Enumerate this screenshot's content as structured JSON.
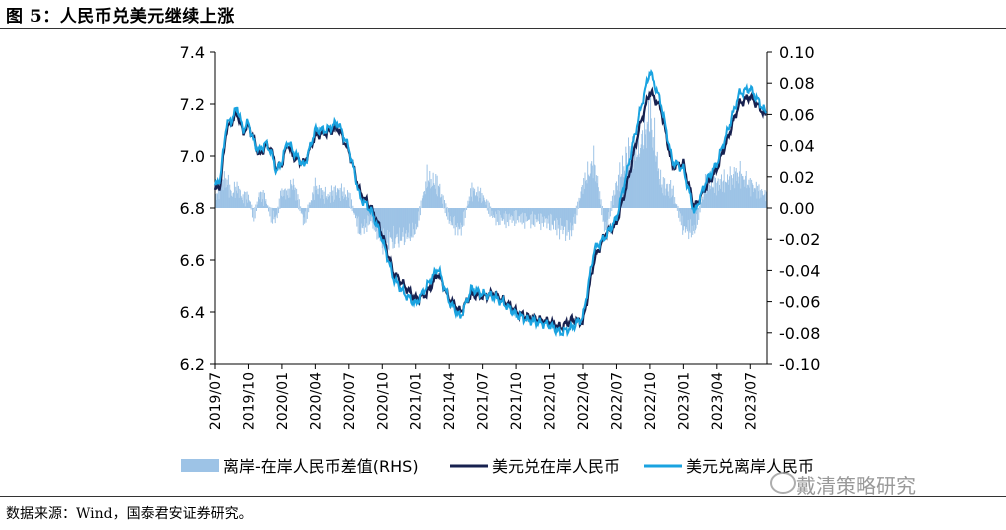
{
  "header": {
    "title": "图 5：人民币兑美元继续上涨"
  },
  "footer": {
    "source": "数据来源：Wind，国泰君安证券研究。"
  },
  "watermark": {
    "text": "戴清策略研究",
    "icon": "wechat-icon"
  },
  "colors": {
    "onshore": "#17214f",
    "offshore": "#1aa3e0",
    "spread": "#9dc3e6"
  },
  "chart_data": {
    "type": "line",
    "title": "人民币兑美元继续上涨",
    "x_start": "2019-07",
    "x_end": "2023-08",
    "x_tick_labels": [
      "2019/07",
      "2019/10",
      "2020/01",
      "2020/04",
      "2020/07",
      "2020/10",
      "2021/01",
      "2021/04",
      "2021/07",
      "2021/10",
      "2022/01",
      "2022/04",
      "2022/07",
      "2022/10",
      "2023/01",
      "2023/04",
      "2023/07"
    ],
    "left_axis": {
      "ylim": [
        6.2,
        7.4
      ],
      "ticks": [
        "7.4",
        "7.2",
        "7.0",
        "6.8",
        "6.6",
        "6.4",
        "6.2"
      ]
    },
    "right_axis": {
      "ylim": [
        -0.1,
        0.1
      ],
      "ticks": [
        "0.10",
        "0.08",
        "0.06",
        "0.04",
        "0.02",
        "0.00",
        "-0.02",
        "-0.04",
        "-0.06",
        "-0.08",
        "-0.10"
      ]
    },
    "legend": [
      "离岸-在岸人民币差值(RHS)",
      "美元兑在岸人民币",
      "美元兑离岸人民币"
    ],
    "series": [
      {
        "name": "美元兑在岸人民币",
        "axis": "left",
        "x": [
          0,
          0.5,
          1,
          1.5,
          2,
          2.5,
          3,
          3.5,
          4,
          4.5,
          5,
          5.5,
          6,
          6.5,
          7,
          8,
          9,
          10,
          11,
          12,
          13,
          14,
          15,
          16,
          17,
          18,
          19,
          20,
          21,
          22,
          23,
          24,
          25,
          26,
          27,
          28,
          29,
          30,
          31,
          32,
          33,
          34,
          35,
          36,
          37,
          38,
          39,
          40,
          41,
          42,
          43,
          44,
          45,
          46,
          47,
          48,
          49.5
        ],
        "values": [
          6.87,
          6.89,
          7.1,
          7.13,
          7.17,
          7.09,
          7.12,
          7.06,
          7.0,
          7.04,
          7.03,
          6.95,
          6.97,
          7.05,
          7.0,
          6.97,
          7.08,
          7.09,
          7.11,
          7.02,
          6.86,
          6.8,
          6.7,
          6.55,
          6.5,
          6.45,
          6.47,
          6.55,
          6.45,
          6.4,
          6.47,
          6.46,
          6.47,
          6.44,
          6.4,
          6.38,
          6.37,
          6.36,
          6.34,
          6.37,
          6.36,
          6.6,
          6.7,
          6.74,
          6.9,
          7.1,
          7.25,
          7.18,
          6.96,
          6.97,
          6.8,
          6.88,
          6.95,
          7.07,
          7.2,
          7.23,
          7.15
        ]
      },
      {
        "name": "美元兑离岸人民币",
        "axis": "left",
        "x": [
          0,
          0.5,
          1,
          1.5,
          2,
          2.5,
          3,
          3.5,
          4,
          4.5,
          5,
          5.5,
          6,
          6.5,
          7,
          8,
          9,
          10,
          11,
          12,
          13,
          14,
          15,
          16,
          17,
          18,
          19,
          20,
          21,
          22,
          23,
          24,
          25,
          26,
          27,
          28,
          29,
          30,
          31,
          32,
          33,
          34,
          35,
          36,
          37,
          38,
          39,
          40,
          41,
          42,
          43,
          44,
          45,
          46,
          47,
          48,
          49.5
        ],
        "values": [
          6.88,
          6.92,
          7.12,
          7.14,
          7.19,
          7.1,
          7.13,
          7.05,
          7.02,
          7.05,
          7.02,
          6.94,
          6.98,
          7.06,
          7.02,
          6.96,
          7.1,
          7.1,
          7.13,
          7.03,
          6.84,
          6.79,
          6.68,
          6.53,
          6.47,
          6.43,
          6.5,
          6.57,
          6.44,
          6.38,
          6.49,
          6.47,
          6.46,
          6.43,
          6.39,
          6.37,
          6.36,
          6.35,
          6.32,
          6.34,
          6.38,
          6.64,
          6.69,
          6.76,
          6.95,
          7.15,
          7.33,
          7.2,
          6.98,
          6.95,
          6.78,
          6.9,
          6.97,
          7.1,
          7.24,
          7.26,
          7.16
        ]
      },
      {
        "name": "离岸-在岸人民币差值(RHS)",
        "axis": "right",
        "type": "bar",
        "x": [
          0,
          0.5,
          1,
          1.5,
          2,
          2.5,
          3,
          3.5,
          4,
          4.5,
          5,
          5.5,
          6,
          6.5,
          7,
          8,
          9,
          10,
          11,
          12,
          13,
          14,
          15,
          16,
          17,
          18,
          19,
          20,
          21,
          22,
          23,
          24,
          25,
          26,
          27,
          28,
          29,
          30,
          31,
          32,
          33,
          34,
          35,
          36,
          37,
          38,
          39,
          40,
          41,
          42,
          43,
          44,
          45,
          46,
          47,
          48,
          49.5
        ],
        "values": [
          0.008,
          0.02,
          0.025,
          0.012,
          0.018,
          0.008,
          0.01,
          -0.008,
          0.012,
          0.008,
          -0.006,
          -0.01,
          0.015,
          0.012,
          0.022,
          -0.012,
          0.018,
          0.01,
          0.015,
          0.01,
          -0.02,
          -0.01,
          -0.03,
          -0.028,
          -0.025,
          -0.02,
          0.025,
          0.02,
          -0.01,
          -0.02,
          0.015,
          0.01,
          -0.008,
          -0.01,
          -0.008,
          -0.01,
          -0.01,
          -0.012,
          -0.018,
          -0.02,
          0.02,
          0.04,
          -0.02,
          0.02,
          0.045,
          0.05,
          0.08,
          0.02,
          0.015,
          -0.018,
          -0.02,
          0.02,
          0.02,
          0.025,
          0.03,
          0.02,
          0.01
        ]
      }
    ]
  }
}
